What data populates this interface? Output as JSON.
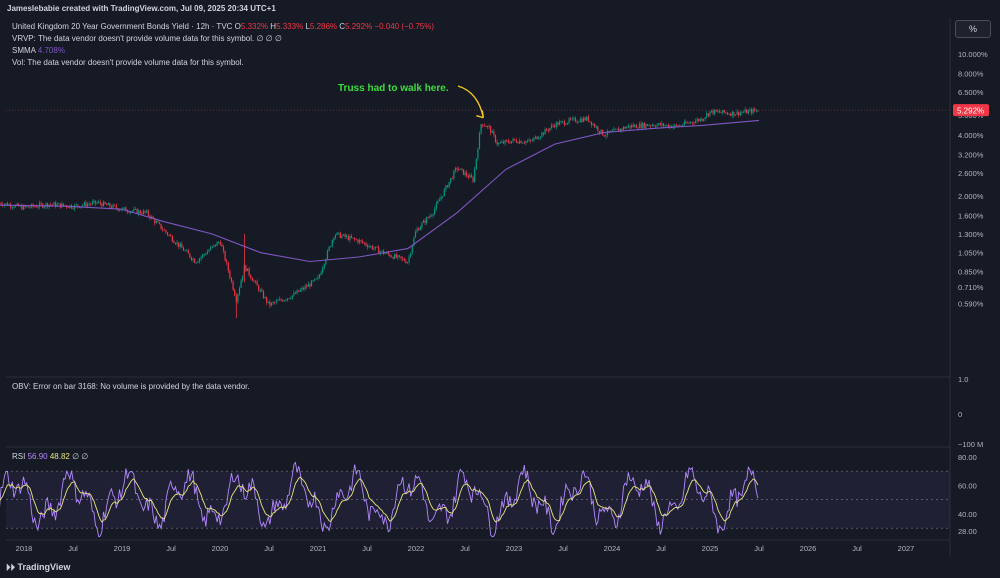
{
  "header": {
    "creator": "Jameslebabie created with TradingView.com, Jul 09, 2025 20:34 UTC+1",
    "symbol": "United Kingdom 20 Year Government Bonds Yield · 12h · TVC",
    "ohlc": {
      "o_label": "O",
      "o": "5.332%",
      "h_label": "H",
      "h": "5.333%",
      "l_label": "L",
      "l": "5.286%",
      "c_label": "C",
      "c": "5.292%",
      "change": "−0.040 (−0.75%)"
    },
    "vrvp": "VRVP: The data vendor doesn't provide volume data for this symbol.  ∅  ∅  ∅",
    "smma_label": "SMMA",
    "smma_value": "4.708%",
    "vol": "Vol: The data vendor doesn't provide volume data for this symbol.",
    "pct_button": "%"
  },
  "annotation": "Truss had to walk here.",
  "obv": {
    "text": "OBV: Error on bar 3168: No volume is provided by the data vendor.",
    "axis_ticks": [
      "1.0",
      "0",
      "−100 M"
    ]
  },
  "rsi": {
    "label": "RSI",
    "value1": "56.90",
    "value2": "48.82",
    "tail": "∅  ∅",
    "axis_ticks": [
      "80.00",
      "60.00",
      "40.00",
      "28.00"
    ]
  },
  "price_axis": {
    "ticks": [
      "10.000%",
      "8.000%",
      "6.500%",
      "5.000%",
      "4.000%",
      "3.200%",
      "2.600%",
      "2.000%",
      "1.600%",
      "1.300%",
      "1.050%",
      "0.850%",
      "0.710%",
      "0.590%"
    ],
    "current_price_label": "5.292%"
  },
  "time_axis": {
    "labels": [
      "2018",
      "Jul",
      "2019",
      "Jul",
      "2020",
      "Jul",
      "2021",
      "Jul",
      "2022",
      "Jul",
      "2023",
      "Jul",
      "2024",
      "Jul",
      "2025",
      "Jul",
      "2026",
      "Jul",
      "2027"
    ]
  },
  "footer_logo": "TradingView",
  "colors": {
    "up": "#089981",
    "down": "#f23645",
    "smma": "#7e57c2",
    "rsi_line": "#b388ff",
    "rsi_ma": "#e6e680",
    "annotation": "#3ddc3d",
    "arrow": "#f5c518"
  },
  "chart_data": {
    "type": "line",
    "title": "United Kingdom 20 Year Government Bonds Yield",
    "log_scale": true,
    "ylim": [
      0.5,
      11
    ],
    "x_range": [
      "2017-10",
      "2027-12"
    ],
    "series": [
      {
        "name": "Price",
        "x": [
          "2017-10",
          "2018-01",
          "2018-04",
          "2018-07",
          "2018-10",
          "2019-01",
          "2019-04",
          "2019-07",
          "2019-10",
          "2020-01",
          "2020-03",
          "2020-04",
          "2020-07",
          "2020-10",
          "2021-01",
          "2021-03",
          "2021-06",
          "2021-09",
          "2021-12",
          "2022-01",
          "2022-03",
          "2022-06",
          "2022-08",
          "2022-09",
          "2022-10",
          "2022-11",
          "2023-01",
          "2023-03",
          "2023-06",
          "2023-08",
          "2023-10",
          "2023-12",
          "2024-03",
          "2024-06",
          "2024-09",
          "2024-12",
          "2025-01",
          "2025-04",
          "2025-07"
        ],
        "values": [
          1.85,
          1.75,
          1.82,
          1.78,
          1.85,
          1.72,
          1.65,
          1.25,
          0.95,
          1.2,
          0.62,
          0.9,
          0.58,
          0.65,
          0.78,
          1.3,
          1.2,
          1.05,
          0.95,
          1.35,
          1.65,
          2.75,
          2.4,
          4.6,
          4.3,
          3.6,
          3.75,
          3.7,
          4.5,
          4.7,
          4.8,
          4.0,
          4.4,
          4.5,
          4.4,
          4.8,
          5.2,
          5.1,
          5.29
        ]
      },
      {
        "name": "SMMA",
        "x": [
          "2017-10",
          "2018-06",
          "2019-01",
          "2019-06",
          "2019-12",
          "2020-06",
          "2020-12",
          "2021-06",
          "2021-12",
          "2022-06",
          "2022-12",
          "2023-06",
          "2023-12",
          "2024-06",
          "2024-12",
          "2025-07"
        ],
        "values": [
          1.8,
          1.78,
          1.72,
          1.5,
          1.3,
          1.05,
          0.95,
          1.0,
          1.1,
          1.65,
          2.7,
          3.6,
          4.1,
          4.3,
          4.45,
          4.708
        ]
      }
    ],
    "current_value": 5.292,
    "annotation": "Truss had to walk here."
  }
}
